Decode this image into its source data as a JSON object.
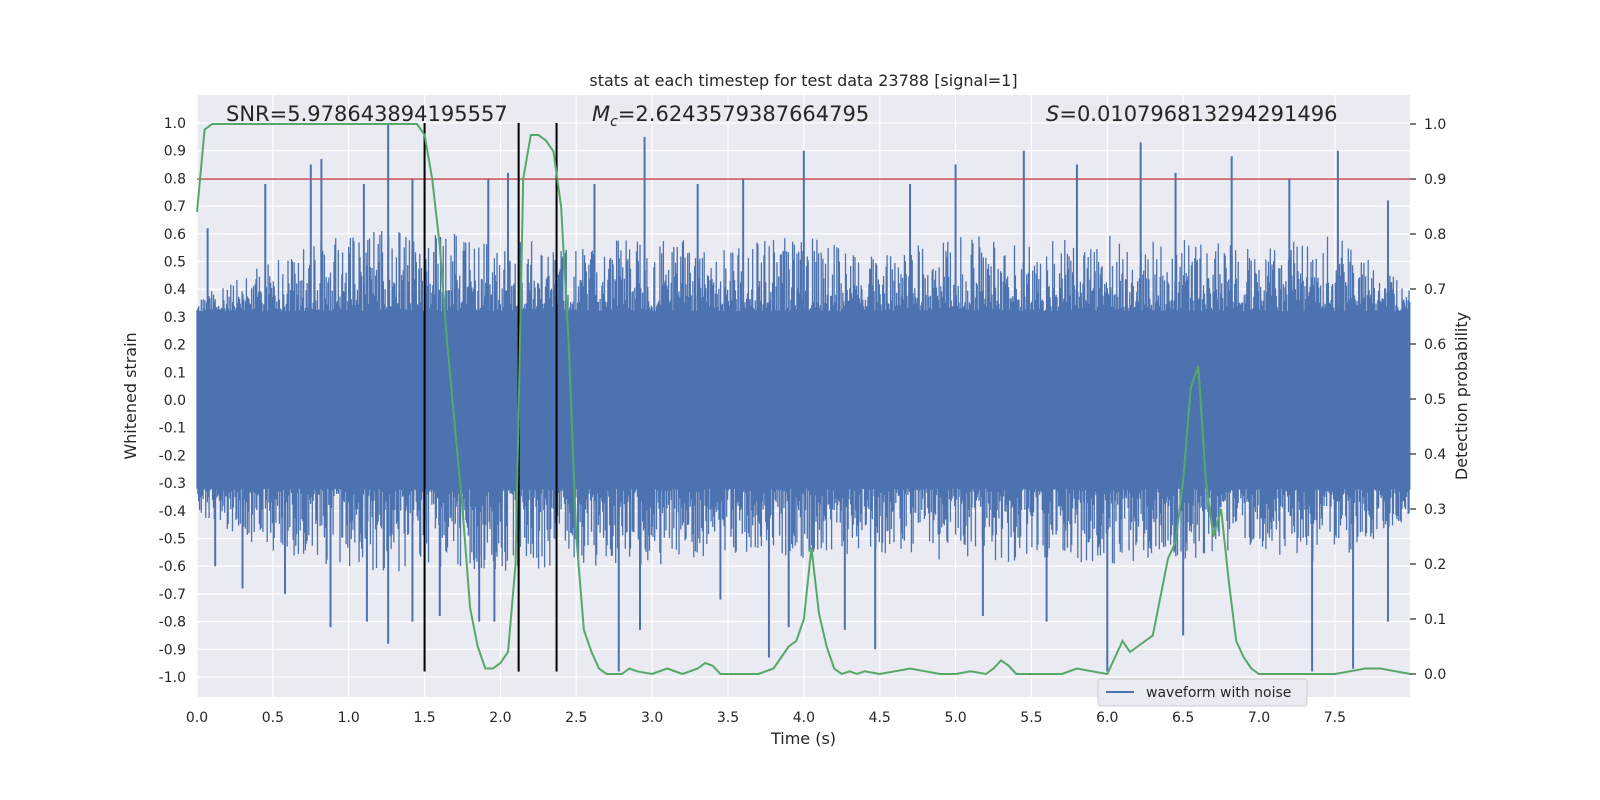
{
  "chart_data": {
    "type": "line",
    "title": "stats at each timestep for test data 23788 [signal=1]",
    "xlabel": "Time (s)",
    "ylabel": "Whitened strain",
    "ylabel_right": "Detection probability",
    "xlim": [
      0.0,
      8.0
    ],
    "ylim": [
      -1.08,
      1.1
    ],
    "ylim_right": [
      -0.05,
      1.05
    ],
    "x_ticks": [
      "0.0",
      "0.5",
      "1.0",
      "1.5",
      "2.0",
      "2.5",
      "3.0",
      "3.5",
      "4.0",
      "4.5",
      "5.0",
      "5.5",
      "6.0",
      "6.5",
      "7.0",
      "7.5"
    ],
    "y_ticks": [
      "1.0",
      "0.9",
      "0.8",
      "0.7",
      "0.6",
      "0.5",
      "0.4",
      "0.3",
      "0.2",
      "0.1",
      "0.0",
      "-0.1",
      "-0.2",
      "-0.3",
      "-0.4",
      "-0.5",
      "-0.6",
      "-0.7",
      "-0.8",
      "-0.9",
      "-1.0"
    ],
    "y_ticks_right": [
      "1.0",
      "0.9",
      "0.8",
      "0.7",
      "0.6",
      "0.5",
      "0.4",
      "0.3",
      "0.2",
      "0.1",
      "0.0"
    ],
    "annotations": {
      "snr": "SNR=5.978643894195557",
      "mc_symbol": "M",
      "mc_sub": "c",
      "mc_value": "=2.6243579387664795",
      "s_symbol": "S",
      "s_value": "=0.010796813294291496"
    },
    "threshold": {
      "value_right": 0.9,
      "color": "#c44e52"
    },
    "vertical_lines": [
      1.5,
      2.12,
      2.37
    ],
    "series": [
      {
        "name": "waveform with noise",
        "color": "#4c72b0",
        "envelope_x": [
          0.0,
          0.5,
          1.0,
          1.5,
          2.0,
          2.5,
          3.0,
          3.5,
          4.0,
          4.5,
          5.0,
          5.5,
          6.0,
          6.5,
          7.0,
          7.5,
          8.0
        ],
        "envelope_pos": [
          0.38,
          0.5,
          0.62,
          0.6,
          0.6,
          0.55,
          0.6,
          0.55,
          0.6,
          0.55,
          0.6,
          0.58,
          0.6,
          0.58,
          0.55,
          0.6,
          0.4
        ],
        "envelope_neg": [
          -0.42,
          -0.55,
          -0.62,
          -0.62,
          -0.62,
          -0.6,
          -0.6,
          -0.55,
          -0.6,
          -0.55,
          -0.6,
          -0.58,
          -0.6,
          -0.58,
          -0.55,
          -0.6,
          -0.42
        ],
        "core_amplitude": 0.32,
        "spikes_up": [
          [
            0.07,
            0.62
          ],
          [
            0.45,
            0.78
          ],
          [
            0.75,
            0.85
          ],
          [
            0.82,
            0.87
          ],
          [
            1.1,
            0.78
          ],
          [
            1.26,
            1.0
          ],
          [
            1.42,
            0.8
          ],
          [
            1.92,
            0.8
          ],
          [
            2.05,
            0.82
          ],
          [
            2.62,
            0.78
          ],
          [
            2.95,
            0.95
          ],
          [
            3.3,
            0.78
          ],
          [
            3.6,
            0.8
          ],
          [
            4.0,
            0.9
          ],
          [
            4.7,
            0.78
          ],
          [
            5.0,
            0.85
          ],
          [
            5.45,
            0.9
          ],
          [
            5.8,
            0.85
          ],
          [
            6.22,
            0.93
          ],
          [
            6.45,
            0.82
          ],
          [
            6.82,
            0.88
          ],
          [
            7.2,
            0.8
          ],
          [
            7.52,
            0.9
          ],
          [
            7.85,
            0.72
          ]
        ],
        "spikes_down": [
          [
            0.12,
            -0.6
          ],
          [
            0.3,
            -0.68
          ],
          [
            0.58,
            -0.7
          ],
          [
            0.88,
            -0.82
          ],
          [
            1.12,
            -0.8
          ],
          [
            1.26,
            -0.88
          ],
          [
            1.42,
            -0.8
          ],
          [
            1.6,
            -0.78
          ],
          [
            1.86,
            -0.8
          ],
          [
            1.96,
            -0.8
          ],
          [
            2.12,
            -0.6
          ],
          [
            2.78,
            -0.98
          ],
          [
            2.92,
            -0.83
          ],
          [
            3.45,
            -0.72
          ],
          [
            3.77,
            -0.93
          ],
          [
            3.9,
            -0.82
          ],
          [
            4.27,
            -0.83
          ],
          [
            4.47,
            -0.9
          ],
          [
            5.18,
            -0.78
          ],
          [
            5.6,
            -0.8
          ],
          [
            6.0,
            -0.98
          ],
          [
            6.5,
            -0.85
          ],
          [
            7.35,
            -0.98
          ],
          [
            7.62,
            -0.97
          ],
          [
            7.85,
            -0.8
          ]
        ]
      },
      {
        "name": "detection probability",
        "color": "#55a868",
        "axis": "right",
        "x": [
          0.0,
          0.05,
          0.1,
          0.2,
          0.3,
          0.4,
          0.5,
          0.6,
          0.7,
          0.8,
          0.9,
          1.0,
          1.1,
          1.2,
          1.3,
          1.4,
          1.45,
          1.5,
          1.55,
          1.6,
          1.65,
          1.7,
          1.75,
          1.8,
          1.85,
          1.9,
          1.95,
          2.0,
          2.05,
          2.1,
          2.15,
          2.2,
          2.25,
          2.3,
          2.35,
          2.4,
          2.45,
          2.5,
          2.55,
          2.6,
          2.65,
          2.7,
          2.75,
          2.8,
          2.85,
          2.9,
          3.0,
          3.1,
          3.2,
          3.3,
          3.35,
          3.4,
          3.45,
          3.5,
          3.6,
          3.7,
          3.8,
          3.85,
          3.9,
          3.95,
          4.0,
          4.05,
          4.1,
          4.15,
          4.2,
          4.25,
          4.3,
          4.35,
          4.4,
          4.5,
          4.6,
          4.7,
          4.8,
          4.9,
          5.0,
          5.1,
          5.2,
          5.25,
          5.3,
          5.35,
          5.4,
          5.5,
          5.6,
          5.7,
          5.8,
          5.9,
          6.0,
          6.1,
          6.15,
          6.2,
          6.25,
          6.3,
          6.35,
          6.4,
          6.45,
          6.5,
          6.55,
          6.6,
          6.65,
          6.7,
          6.75,
          6.8,
          6.85,
          6.9,
          6.95,
          7.0,
          7.05,
          7.1,
          7.2,
          7.3,
          7.4,
          7.5,
          7.6,
          7.7,
          7.8,
          7.9,
          8.0
        ],
        "y": [
          0.84,
          0.99,
          1.0,
          1.0,
          1.0,
          1.0,
          1.0,
          1.0,
          1.0,
          1.0,
          1.0,
          1.0,
          1.0,
          1.0,
          1.0,
          1.0,
          1.0,
          0.98,
          0.9,
          0.78,
          0.6,
          0.45,
          0.3,
          0.12,
          0.05,
          0.01,
          0.01,
          0.02,
          0.04,
          0.2,
          0.9,
          0.98,
          0.98,
          0.97,
          0.95,
          0.85,
          0.6,
          0.25,
          0.08,
          0.04,
          0.01,
          0.0,
          0.0,
          0.0,
          0.01,
          0.005,
          0.0,
          0.01,
          0.0,
          0.01,
          0.02,
          0.015,
          0.0,
          0.0,
          0.0,
          0.0,
          0.01,
          0.03,
          0.05,
          0.06,
          0.1,
          0.23,
          0.11,
          0.05,
          0.01,
          0.0,
          0.005,
          0.0,
          0.005,
          0.0,
          0.005,
          0.01,
          0.005,
          0.0,
          0.0,
          0.005,
          0.0,
          0.01,
          0.025,
          0.015,
          0.0,
          0.0,
          0.0,
          0.0,
          0.01,
          0.005,
          0.0,
          0.06,
          0.04,
          0.05,
          0.06,
          0.07,
          0.14,
          0.21,
          0.24,
          0.35,
          0.52,
          0.56,
          0.35,
          0.25,
          0.3,
          0.17,
          0.06,
          0.03,
          0.01,
          0.0,
          0.0,
          0.0,
          0.0,
          0.0,
          0.0,
          0.0,
          0.005,
          0.01,
          0.01,
          0.005,
          0.0
        ]
      }
    ],
    "legend": {
      "label": "waveform with noise",
      "position": "lower-right"
    },
    "grid": true
  }
}
